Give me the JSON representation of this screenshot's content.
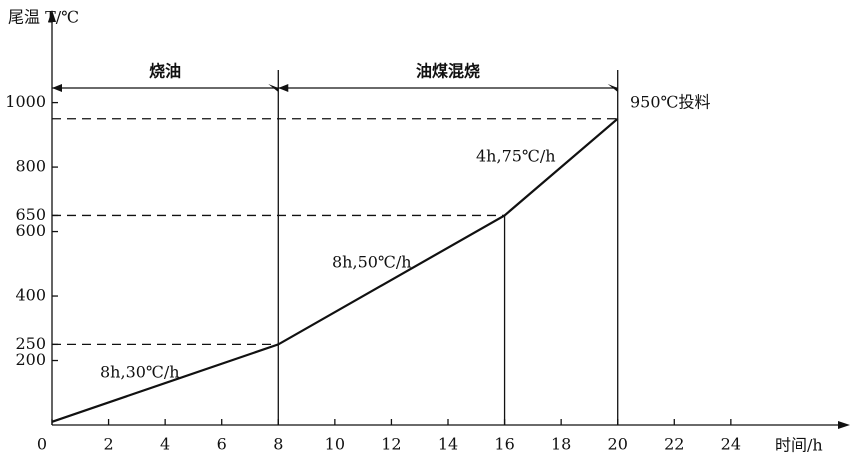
{
  "chart_data": {
    "type": "line",
    "y_label": "尾温 T/℃",
    "x_label": "时间/h",
    "x": [
      0,
      8,
      16,
      20
    ],
    "values": [
      10,
      250,
      650,
      950
    ],
    "color": "#111111",
    "xlim": [
      0,
      28
    ],
    "xticks": [
      0,
      2,
      4,
      6,
      8,
      10,
      12,
      14,
      16,
      18,
      20,
      22,
      24
    ],
    "ylim": [
      0,
      1250
    ],
    "yticks": [
      200,
      250,
      400,
      600,
      650,
      800,
      1000
    ],
    "phases": [
      {
        "label": "烧油",
        "start": 0,
        "end": 8
      },
      {
        "label": "油煤混烧",
        "start": 8,
        "end": 20
      }
    ],
    "annotations": [
      "8h,30℃/h",
      "8h,50℃/h",
      "4h,75℃/h",
      "950℃投料"
    ]
  }
}
